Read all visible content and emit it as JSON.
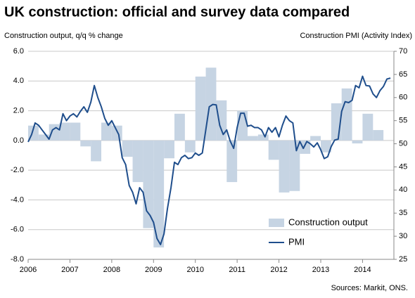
{
  "chart_data": {
    "type": "bar-line",
    "title": "UK construction: official and survey data compared",
    "y_label": "Construction output, q/q % change",
    "y2_label": "Construction PMI (Activity  Index)",
    "source": "Sources: Markit, ONS.",
    "xlim": [
      2006,
      2014.75
    ],
    "xticks": [
      2006,
      2007,
      2008,
      2009,
      2010,
      2011,
      2012,
      2013,
      2014
    ],
    "ylim": [
      -8,
      6
    ],
    "yticks": [
      {
        "value": -8,
        "label": "-8.0"
      },
      {
        "value": -6,
        "label": "-6.0"
      },
      {
        "value": -4,
        "label": "-4.0"
      },
      {
        "value": -2,
        "label": "-2.0"
      },
      {
        "value": 0,
        "label": "0.0"
      },
      {
        "value": 2,
        "label": "2.0"
      },
      {
        "value": 4,
        "label": "4.0"
      },
      {
        "value": 6,
        "label": "6.0"
      }
    ],
    "y2lim": [
      25,
      70
    ],
    "y2ticks": [
      25,
      30,
      35,
      40,
      45,
      50,
      55,
      60,
      65,
      70
    ],
    "grid": true,
    "legend": "bottom-right",
    "series": [
      {
        "name": "Construction output",
        "type": "bar",
        "axis": "y",
        "color": "#c6d4e3",
        "x": [
          2006.125,
          2006.375,
          2006.625,
          2006.875,
          2007.125,
          2007.375,
          2007.625,
          2007.875,
          2008.125,
          2008.375,
          2008.625,
          2008.875,
          2009.125,
          2009.375,
          2009.625,
          2009.875,
          2010.125,
          2010.375,
          2010.625,
          2010.875,
          2011.125,
          2011.375,
          2011.625,
          2011.875,
          2012.125,
          2012.375,
          2012.625,
          2012.875,
          2013.125,
          2013.375,
          2013.625,
          2013.875,
          2014.125,
          2014.375
        ],
        "values": [
          1.0,
          0.4,
          1.1,
          1.2,
          1.2,
          -0.4,
          -1.4,
          1.2,
          1.0,
          -1.1,
          -2.8,
          -5.9,
          -7.2,
          -1.2,
          1.8,
          -0.8,
          4.3,
          4.9,
          2.7,
          -2.8,
          2.0,
          0.3,
          0.4,
          -1.3,
          -3.5,
          -3.4,
          -0.9,
          0.3,
          -0.8,
          2.5,
          3.5,
          -0.2,
          1.8,
          0.7
        ]
      },
      {
        "name": "PMI",
        "type": "line",
        "axis": "y2",
        "color": "#1f4e8c",
        "x": [
          2006,
          2006.083,
          2006.167,
          2006.25,
          2006.333,
          2006.417,
          2006.5,
          2006.583,
          2006.667,
          2006.75,
          2006.833,
          2006.917,
          2007,
          2007.083,
          2007.167,
          2007.25,
          2007.333,
          2007.417,
          2007.5,
          2007.583,
          2007.667,
          2007.75,
          2007.833,
          2007.917,
          2008,
          2008.083,
          2008.167,
          2008.25,
          2008.333,
          2008.417,
          2008.5,
          2008.583,
          2008.667,
          2008.75,
          2008.833,
          2008.917,
          2009,
          2009.083,
          2009.167,
          2009.25,
          2009.333,
          2009.417,
          2009.5,
          2009.583,
          2009.667,
          2009.75,
          2009.833,
          2009.917,
          2010,
          2010.083,
          2010.167,
          2010.25,
          2010.333,
          2010.417,
          2010.5,
          2010.583,
          2010.667,
          2010.75,
          2010.833,
          2010.917,
          2011,
          2011.083,
          2011.167,
          2011.25,
          2011.333,
          2011.417,
          2011.5,
          2011.583,
          2011.667,
          2011.75,
          2011.833,
          2011.917,
          2012,
          2012.083,
          2012.167,
          2012.25,
          2012.333,
          2012.417,
          2012.5,
          2012.583,
          2012.667,
          2012.75,
          2012.833,
          2012.917,
          2013,
          2013.083,
          2013.167,
          2013.25,
          2013.333,
          2013.417,
          2013.5,
          2013.583,
          2013.667,
          2013.75,
          2013.833,
          2013.917,
          2014,
          2014.083,
          2014.167,
          2014.25,
          2014.333,
          2014.417,
          2014.5,
          2014.583,
          2014.667
        ],
        "values": [
          50.4,
          52,
          54.5,
          54,
          53,
          52,
          51,
          53,
          53.5,
          53,
          56.5,
          55,
          56,
          56.5,
          55.8,
          57,
          58,
          56.8,
          59,
          62.6,
          60,
          58,
          55.5,
          54,
          55,
          53.5,
          52,
          47,
          45.5,
          41,
          39.5,
          37,
          40.5,
          39.5,
          35.5,
          34.5,
          33,
          29.5,
          28.2,
          30.5,
          36,
          40.5,
          46,
          45.5,
          47,
          47.5,
          46.8,
          47,
          48,
          47.5,
          48,
          53,
          58,
          58.5,
          58.4,
          54,
          52,
          53,
          50.6,
          49,
          53.5,
          56.6,
          56.6,
          53.8,
          54,
          53.5,
          53.5,
          53,
          51.5,
          53.5,
          52.5,
          53.5,
          51.5,
          54,
          56,
          55,
          54.5,
          48.5,
          50.5,
          49,
          50.5,
          50,
          49.3,
          50.2,
          48.7,
          46.8,
          47.2,
          49.4,
          50.8,
          51,
          57,
          59.1,
          58.9,
          59.4,
          62.6,
          62.1,
          64.6,
          62.6,
          62.5,
          60.8,
          60,
          61.5,
          62.4,
          64,
          64.2
        ]
      }
    ]
  }
}
